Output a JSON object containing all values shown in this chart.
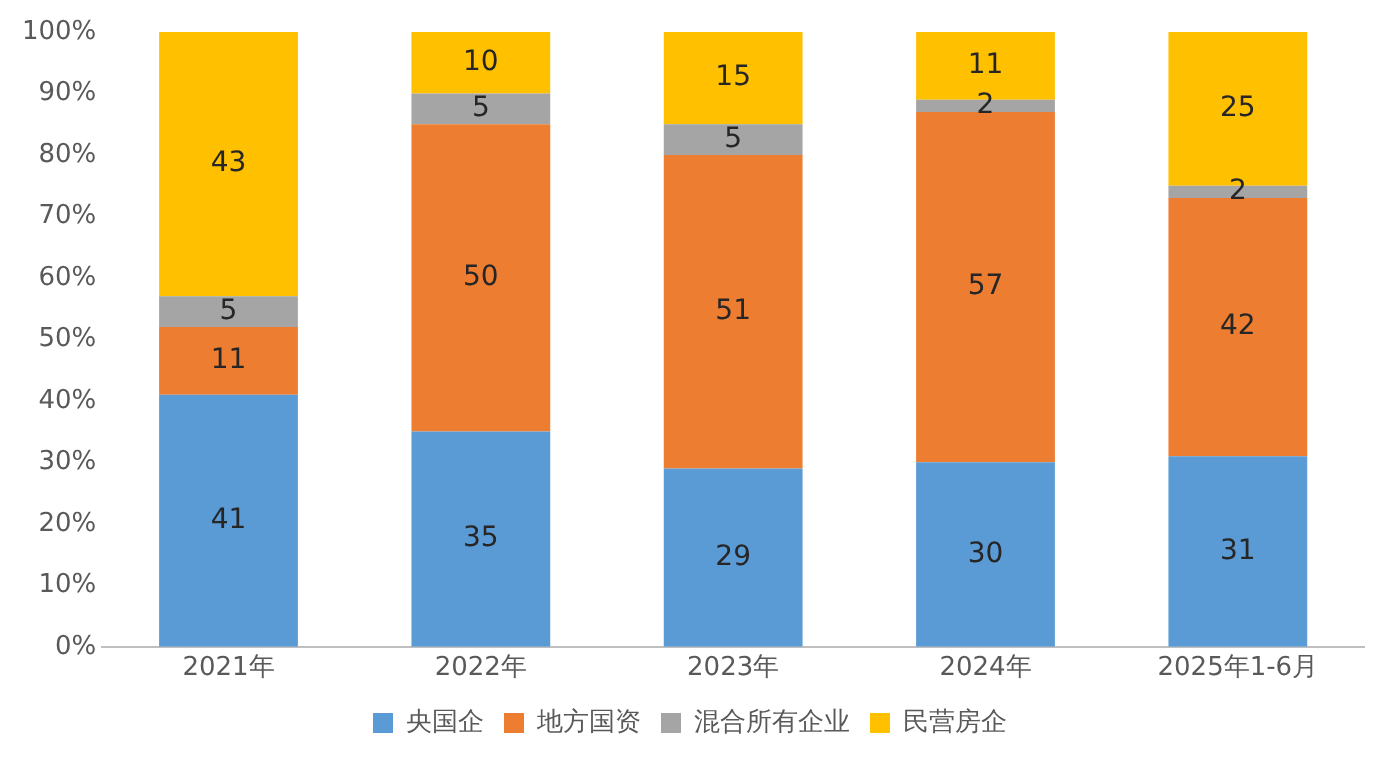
{
  "chart_data": {
    "type": "bar",
    "stacked": true,
    "categories": [
      "2021年",
      "2022年",
      "2023年",
      "2024年",
      "2025年1-6月"
    ],
    "series": [
      {
        "name": "央国企",
        "color": "#5b9bd5",
        "values": [
          41,
          35,
          29,
          30,
          31
        ]
      },
      {
        "name": "地方国资",
        "color": "#ed7d31",
        "values": [
          11,
          50,
          51,
          57,
          42
        ]
      },
      {
        "name": "混合所有企业",
        "color": "#a5a5a5",
        "values": [
          5,
          5,
          5,
          2,
          2
        ]
      },
      {
        "name": "民营房企",
        "color": "#ffc000",
        "values": [
          43,
          10,
          15,
          11,
          25
        ]
      }
    ],
    "ylim": [
      0,
      100
    ],
    "yticks": [
      {
        "value": 0,
        "label": "0%"
      },
      {
        "value": 10,
        "label": "10%"
      },
      {
        "value": 20,
        "label": "20%"
      },
      {
        "value": 30,
        "label": "30%"
      },
      {
        "value": 40,
        "label": "40%"
      },
      {
        "value": 50,
        "label": "50%"
      },
      {
        "value": 60,
        "label": "60%"
      },
      {
        "value": 70,
        "label": "70%"
      },
      {
        "value": 80,
        "label": "80%"
      },
      {
        "value": 90,
        "label": "90%"
      },
      {
        "value": 100,
        "label": "100%"
      }
    ],
    "grid": false,
    "legend": "bottom",
    "data_labels": true
  }
}
